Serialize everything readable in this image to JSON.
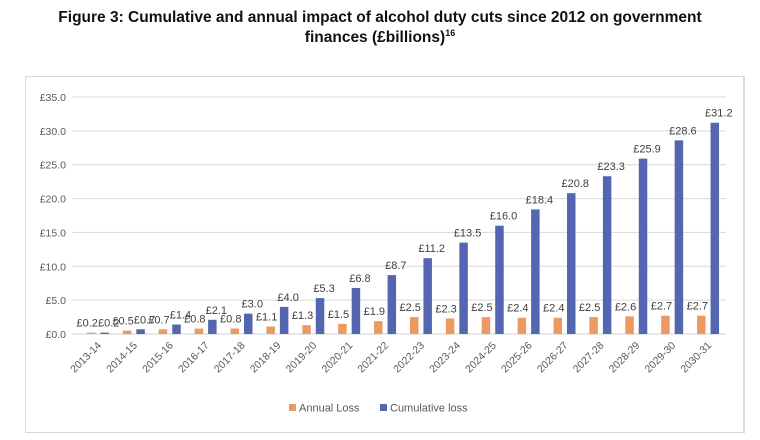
{
  "figure": {
    "title_line1": "Figure 3: Cumulative and annual impact of alcohol duty cuts since 2012 on government",
    "title_line2": "finances (£billions)",
    "footnote_ref": "16"
  },
  "chart_data": {
    "type": "bar",
    "title": "Figure 3: Cumulative and annual impact of alcohol duty cuts since 2012 on government finances (£billions)",
    "xlabel": "",
    "ylabel": "",
    "ylim": [
      0,
      35
    ],
    "yticks": [
      0,
      5,
      10,
      15,
      20,
      25,
      30,
      35
    ],
    "ytick_labels": [
      "£0.0",
      "£5.0",
      "£10.0",
      "£15.0",
      "£20.0",
      "£25.0",
      "£30.0",
      "£35.0"
    ],
    "grid": true,
    "legend_position": "bottom",
    "categories": [
      "2013-14",
      "2014-15",
      "2015-16",
      "2016-17",
      "2017-18",
      "2018-19",
      "2019-20",
      "2020-21",
      "2021-22",
      "2022-23",
      "2023-24",
      "2024-25",
      "2025-26",
      "2026-27",
      "2027-28",
      "2028-29",
      "2029-30",
      "2030-31"
    ],
    "series": [
      {
        "name": "Annual Loss",
        "color": "#ED9A62",
        "values": [
          0.2,
          0.5,
          0.7,
          0.8,
          0.8,
          1.1,
          1.3,
          1.5,
          1.9,
          2.5,
          2.3,
          2.5,
          2.4,
          2.4,
          2.5,
          2.6,
          2.7,
          2.7
        ],
        "labels": [
          "£0.2",
          "£0.5",
          "£0.7",
          "£0.8",
          "£0.8",
          "£1.1",
          "£1.3",
          "£1.5",
          "£1.9",
          "£2.5",
          "£2.3",
          "£2.5",
          "£2.4",
          "£2.4",
          "£2.5",
          "£2.6",
          "£2.7",
          "£2.7"
        ]
      },
      {
        "name": "Cumulative loss",
        "color": "#5566B0",
        "values": [
          0.2,
          0.7,
          1.4,
          2.1,
          3.0,
          4.0,
          5.3,
          6.8,
          8.7,
          11.2,
          13.5,
          16.0,
          18.4,
          20.8,
          23.3,
          25.9,
          28.6,
          31.2
        ],
        "labels": [
          "£0.2",
          "£0.7",
          "£1.4",
          "£2.1",
          "£3.0",
          "£4.0",
          "£5.3",
          "£6.8",
          "£8.7",
          "£11.2",
          "£13.5",
          "£16.0",
          "£18.4",
          "£20.8",
          "£23.3",
          "£25.9",
          "£28.6",
          "£31.2"
        ]
      }
    ],
    "legend": [
      "Annual Loss",
      "Cumulative loss"
    ]
  }
}
